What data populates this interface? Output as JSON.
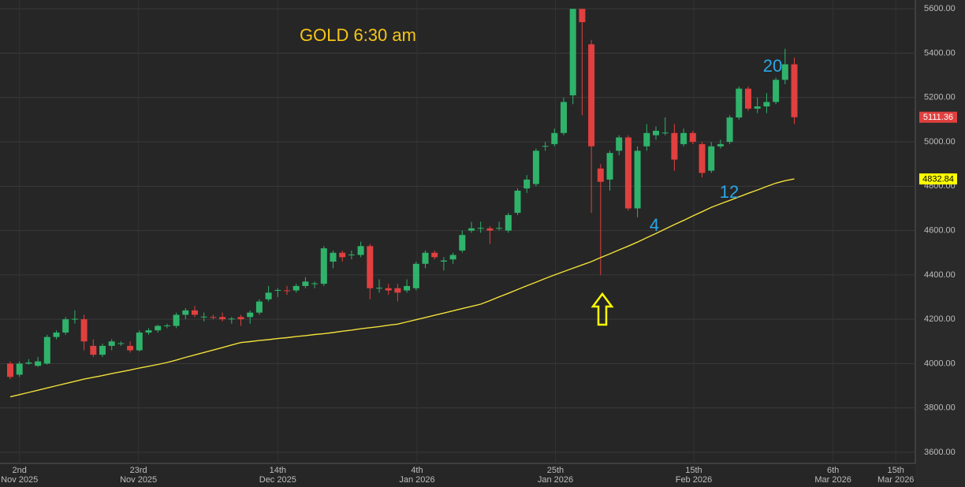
{
  "chart_data": {
    "type": "candlestick",
    "title": "GOLD 6:30 am",
    "up_color": "#2fb36b",
    "down_color": "#e0403f",
    "open": [
      4000,
      3950,
      4000,
      3990,
      4000,
      4120,
      4140,
      4200,
      4200,
      4080,
      4040,
      4080,
      4090,
      4080,
      4060,
      4140,
      4150,
      4170,
      4170,
      4220,
      4240,
      4210,
      4210,
      4210,
      4200,
      4210,
      4210,
      4230,
      4290,
      4330,
      4330,
      4330,
      4350,
      4360,
      4360,
      4460,
      4500,
      4490,
      4490,
      4530,
      4340,
      4340,
      4340,
      4330,
      4340,
      4450,
      4500,
      4460,
      4470,
      4510,
      4600,
      4610,
      4610,
      4610,
      4600,
      4680,
      4790,
      4810,
      4980,
      4990,
      5040,
      5210,
      5600,
      5440,
      4880,
      4830,
      4960,
      5020,
      4700,
      4980,
      5030,
      5040,
      5040,
      4990,
      5040,
      4990,
      4870,
      4980,
      5000,
      5110,
      5240,
      5150,
      5160,
      5180,
      5280,
      5350
    ],
    "high": [
      4010,
      4010,
      4020,
      4030,
      4130,
      4150,
      4210,
      4240,
      4220,
      4110,
      4090,
      4110,
      4100,
      4100,
      4150,
      4160,
      4175,
      4180,
      4230,
      4250,
      4260,
      4230,
      4220,
      4230,
      4210,
      4220,
      4240,
      4290,
      4350,
      4340,
      4350,
      4360,
      4390,
      4370,
      4530,
      4510,
      4510,
      4510,
      4550,
      4540,
      4380,
      4360,
      4360,
      4380,
      4460,
      4510,
      4510,
      4480,
      4500,
      4600,
      4640,
      4640,
      4620,
      4640,
      4680,
      4790,
      4850,
      4970,
      5000,
      5060,
      5200,
      5600,
      5600,
      5460,
      4900,
      4960,
      5030,
      5030,
      4980,
      5080,
      5070,
      5110,
      5080,
      5060,
      5050,
      5000,
      5000,
      5010,
      5120,
      5250,
      5250,
      5200,
      5220,
      5290,
      5420,
      5380
    ],
    "low": [
      3930,
      3940,
      3995,
      3985,
      3995,
      4110,
      4130,
      4180,
      4060,
      4030,
      4030,
      4060,
      4080,
      4050,
      4055,
      4130,
      4140,
      4160,
      4160,
      4200,
      4210,
      4190,
      4200,
      4190,
      4180,
      4170,
      4180,
      4220,
      4280,
      4300,
      4310,
      4320,
      4340,
      4340,
      4350,
      4430,
      4460,
      4470,
      4480,
      4290,
      4320,
      4310,
      4280,
      4320,
      4330,
      4430,
      4470,
      4420,
      4450,
      4500,
      4590,
      4590,
      4540,
      4600,
      4590,
      4670,
      4770,
      4800,
      4960,
      4980,
      5030,
      5170,
      5120,
      4680,
      4400,
      4780,
      4940,
      4690,
      4660,
      4960,
      5010,
      5030,
      4870,
      4980,
      4990,
      4840,
      4860,
      4970,
      4990,
      5100,
      5140,
      5130,
      5130,
      5170,
      5260,
      5080
    ],
    "close": [
      3940,
      4000,
      4005,
      4010,
      4120,
      4140,
      4200,
      4202,
      4100,
      4040,
      4080,
      4100,
      4092,
      4060,
      4140,
      4150,
      4170,
      4172,
      4220,
      4240,
      4220,
      4212,
      4208,
      4200,
      4203,
      4200,
      4230,
      4280,
      4320,
      4332,
      4328,
      4350,
      4370,
      4362,
      4520,
      4500,
      4480,
      4492,
      4530,
      4340,
      4342,
      4330,
      4320,
      4350,
      4450,
      4500,
      4480,
      4465,
      4490,
      4580,
      4610,
      4612,
      4600,
      4612,
      4670,
      4780,
      4830,
      4960,
      4982,
      5040,
      5180,
      5600,
      5540,
      4980,
      4820,
      4950,
      5020,
      4700,
      4960,
      5040,
      5050,
      5042,
      4920,
      5040,
      5000,
      4860,
      4980,
      4990,
      5110,
      5240,
      5150,
      5160,
      5180,
      5280,
      5350,
      5111.36
    ],
    "moving_average": {
      "color": "#f2e03a",
      "values": [
        3850,
        3860,
        3870,
        3880,
        3890,
        3900,
        3910,
        3920,
        3930,
        3938,
        3946,
        3955,
        3963,
        3971,
        3980,
        3988,
        3996,
        4005,
        4016,
        4028,
        4039,
        4050,
        4061,
        4072,
        4084,
        4095,
        4099,
        4104,
        4108,
        4113,
        4117,
        4122,
        4126,
        4131,
        4135,
        4140,
        4146,
        4151,
        4157,
        4162,
        4167,
        4173,
        4178,
        4188,
        4198,
        4208,
        4218,
        4228,
        4238,
        4248,
        4258,
        4268,
        4284,
        4301,
        4317,
        4334,
        4351,
        4367,
        4384,
        4400,
        4415,
        4430,
        4445,
        4460,
        4478,
        4495,
        4513,
        4530,
        4548,
        4568,
        4587,
        4607,
        4627,
        4646,
        4666,
        4685,
        4705,
        4721,
        4736,
        4752,
        4768,
        4783,
        4799,
        4814,
        4825,
        4832.84
      ]
    },
    "ylim": [
      3550,
      5640
    ],
    "yticks": [
      {
        "value": 3600,
        "label": "3600.00"
      },
      {
        "value": 3800,
        "label": "3800.00"
      },
      {
        "value": 4000,
        "label": "4000.00"
      },
      {
        "value": 4200,
        "label": "4200.00"
      },
      {
        "value": 4400,
        "label": "4400.00"
      },
      {
        "value": 4600,
        "label": "4600.00"
      },
      {
        "value": 4800,
        "label": "4800.00"
      },
      {
        "value": 5000,
        "label": "5000.00"
      },
      {
        "value": 5200,
        "label": "5200.00"
      },
      {
        "value": 5400,
        "label": "5400.00"
      },
      {
        "value": 5600,
        "label": "5600.00"
      }
    ],
    "xticks": [
      {
        "value": 1.0,
        "label": "2nd",
        "sublabel": "Nov 2025"
      },
      {
        "value": 13.9,
        "label": "23rd",
        "sublabel": "Nov 2025"
      },
      {
        "value": 29.0,
        "label": "14th",
        "sublabel": "Dec 2025"
      },
      {
        "value": 44.1,
        "label": "4th",
        "sublabel": "Jan 2026"
      },
      {
        "value": 59.1,
        "label": "25th",
        "sublabel": "Jan 2026"
      },
      {
        "value": 74.1,
        "label": "15th",
        "sublabel": "Feb 2026"
      },
      {
        "value": 89.2,
        "label": "6th",
        "sublabel": "Mar 2026"
      },
      {
        "value": 96.0,
        "label": "15th",
        "sublabel": "Mar 2026"
      }
    ],
    "grid": true,
    "price_labels": [
      {
        "value": 5111.36,
        "color": "#e0403f",
        "text_color": "#ffffff"
      },
      {
        "value": 4832.84,
        "color": "#ffff00",
        "text_color": "#000000"
      }
    ],
    "annotations": [
      "20",
      "12",
      "4"
    ]
  }
}
